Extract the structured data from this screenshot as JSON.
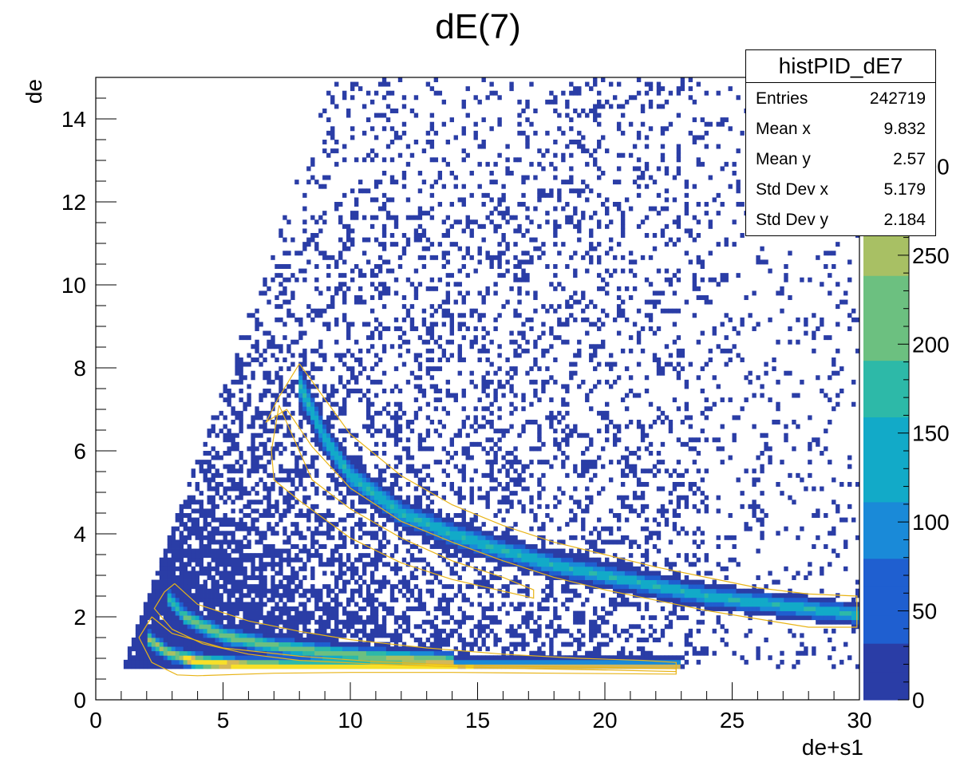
{
  "chart_data": {
    "type": "heatmap",
    "title": "dE(7)",
    "xlabel": "de+s1",
    "ylabel": "de",
    "xlim": [
      0,
      30
    ],
    "ylim": [
      0,
      15
    ],
    "x_ticks": [
      "0",
      "5",
      "10",
      "15",
      "20",
      "25",
      "30"
    ],
    "y_ticks": [
      "0",
      "2",
      "4",
      "6",
      "8",
      "10",
      "12",
      "14"
    ],
    "color_scale": {
      "min": 0,
      "max": 350,
      "ticks": [
        "0",
        "50",
        "100",
        "150",
        "200",
        "250",
        "300"
      ],
      "colors": [
        "#2a3da6",
        "#1f5fd0",
        "#1a8ad8",
        "#12aac8",
        "#2db9a8",
        "#6cc080",
        "#a8c064",
        "#d4b858",
        "#f8e028"
      ]
    },
    "stats_box": {
      "name": "histPID_dE7",
      "rows": [
        {
          "label": "Entries",
          "value": "242719"
        },
        {
          "label": "Mean x",
          "value": "9.832"
        },
        {
          "label": "Mean y",
          "value": "2.57"
        },
        {
          "label": "Std Dev x",
          "value": "5.179"
        },
        {
          "label": "Std Dev y",
          "value": "2.184"
        }
      ]
    },
    "bands": [
      {
        "name": "upper band",
        "points": [
          [
            8.0,
            7.6
          ],
          [
            9,
            6.3
          ],
          [
            10,
            5.4
          ],
          [
            12,
            4.5
          ],
          [
            14,
            4.0
          ],
          [
            16,
            3.6
          ],
          [
            18,
            3.25
          ],
          [
            20,
            3.0
          ],
          [
            22,
            2.75
          ],
          [
            24,
            2.5
          ],
          [
            26,
            2.35
          ],
          [
            28,
            2.2
          ],
          [
            30,
            2.05
          ]
        ],
        "peak": 150
      },
      {
        "name": "middle band",
        "points": [
          [
            2.8,
            2.5
          ],
          [
            3.5,
            2.0
          ],
          [
            5,
            1.55
          ],
          [
            7,
            1.3
          ],
          [
            9,
            1.15
          ],
          [
            11,
            1.05
          ],
          [
            14,
            0.95
          ]
        ],
        "peak": 220
      },
      {
        "name": "lower band",
        "points": [
          [
            2.0,
            1.5
          ],
          [
            2.8,
            1.15
          ],
          [
            4,
            0.92
          ],
          [
            6,
            0.82
          ],
          [
            9,
            0.78
          ],
          [
            12,
            0.76
          ],
          [
            16,
            0.75
          ],
          [
            20,
            0.75
          ],
          [
            23,
            0.75
          ]
        ],
        "peak": 350
      }
    ],
    "cut_contours": [
      [
        [
          8.0,
          8.1
        ],
        [
          10,
          6.4
        ],
        [
          12,
          5.4
        ],
        [
          14,
          4.7
        ],
        [
          16,
          4.2
        ],
        [
          18,
          3.8
        ],
        [
          20,
          3.5
        ],
        [
          22,
          3.2
        ],
        [
          24,
          2.95
        ],
        [
          26,
          2.7
        ],
        [
          28,
          2.55
        ],
        [
          29.9,
          2.5
        ],
        [
          29.9,
          1.75
        ],
        [
          28,
          1.75
        ],
        [
          26,
          1.95
        ],
        [
          24,
          2.15
        ],
        [
          22,
          2.4
        ],
        [
          20,
          2.65
        ],
        [
          18,
          2.95
        ],
        [
          16,
          3.35
        ],
        [
          14,
          3.8
        ],
        [
          12,
          4.3
        ],
        [
          10,
          5.1
        ],
        [
          8.5,
          6.1
        ],
        [
          7.5,
          7.0
        ],
        [
          6.7,
          6.7
        ],
        [
          7.2,
          7.3
        ],
        [
          8.0,
          8.1
        ]
      ],
      [
        [
          7.2,
          7.1
        ],
        [
          8.5,
          5.3
        ],
        [
          10,
          4.6
        ],
        [
          12,
          3.9
        ],
        [
          14,
          3.35
        ],
        [
          16,
          2.95
        ],
        [
          17.2,
          2.65
        ],
        [
          17.2,
          2.45
        ],
        [
          14,
          2.9
        ],
        [
          12,
          3.3
        ],
        [
          10,
          3.9
        ],
        [
          8,
          4.8
        ],
        [
          7.0,
          5.3
        ],
        [
          6.9,
          6.0
        ],
        [
          7.2,
          7.1
        ]
      ],
      [
        [
          3.1,
          2.8
        ],
        [
          4,
          2.3
        ],
        [
          6,
          1.9
        ],
        [
          8,
          1.65
        ],
        [
          10,
          1.45
        ],
        [
          13,
          1.25
        ],
        [
          16,
          1.1
        ],
        [
          19,
          1.0
        ],
        [
          21.5,
          0.95
        ],
        [
          22.8,
          0.9
        ],
        [
          22.8,
          0.68
        ],
        [
          20,
          0.72
        ],
        [
          17,
          0.75
        ],
        [
          14,
          0.8
        ],
        [
          11,
          0.86
        ],
        [
          8,
          0.95
        ],
        [
          6,
          1.1
        ],
        [
          4.2,
          1.35
        ],
        [
          3,
          1.7
        ],
        [
          2.3,
          2.2
        ],
        [
          2.7,
          2.6
        ],
        [
          3.1,
          2.8
        ]
      ],
      [
        [
          2.2,
          2.0
        ],
        [
          3,
          1.6
        ],
        [
          5,
          1.25
        ],
        [
          8,
          1.05
        ],
        [
          11,
          0.92
        ],
        [
          14,
          0.84
        ],
        [
          17,
          0.8
        ],
        [
          20,
          0.78
        ],
        [
          22.8,
          0.75
        ],
        [
          22.8,
          0.62
        ],
        [
          18,
          0.64
        ],
        [
          14,
          0.66
        ],
        [
          10,
          0.66
        ],
        [
          7,
          0.64
        ],
        [
          4,
          0.58
        ],
        [
          3.2,
          0.6
        ],
        [
          2.2,
          0.9
        ],
        [
          1.7,
          1.5
        ],
        [
          2.2,
          2.0
        ]
      ]
    ],
    "triangle_region": {
      "left_edge": [
        [
          1.0,
          0.7
        ],
        [
          9.3,
          14.9
        ]
      ],
      "bottom_y": 0.7,
      "x_start": 1.0
    }
  }
}
